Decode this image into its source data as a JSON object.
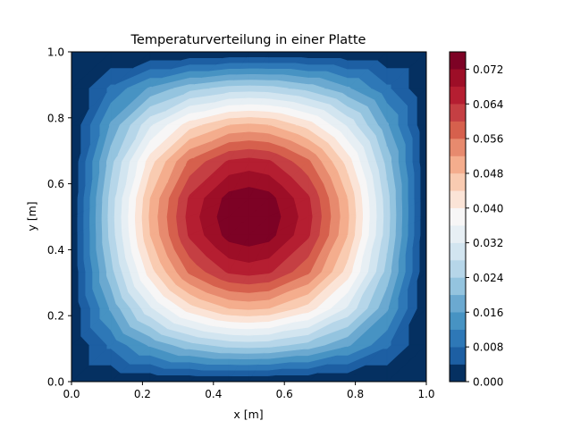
{
  "chart_data": {
    "type": "heatmap",
    "subtype": "filled-contour",
    "title": "Temperaturverteilung in einer Platte",
    "xlabel": "x [m]",
    "ylabel": "y [m]",
    "xlim": [
      0.0,
      1.0
    ],
    "ylim": [
      0.0,
      1.0
    ],
    "x_ticks": [
      "0.0",
      "0.2",
      "0.4",
      "0.6",
      "0.8",
      "1.0"
    ],
    "y_ticks": [
      "0.0",
      "0.2",
      "0.4",
      "0.6",
      "0.8",
      "1.0"
    ],
    "grid": false,
    "grid_points": [
      0.0,
      0.111,
      0.222,
      0.333,
      0.444,
      0.5,
      0.556,
      0.667,
      0.778,
      0.889,
      1.0
    ],
    "field": "approx. 0.0759 * sin(pi*x) * sin(pi*y), 0 on all edges, peak at (0.5, 0.5)",
    "peak_value": 0.0759,
    "boundary_value": 0.0,
    "colormap": "RdBu_r",
    "colorbar": {
      "min": 0.0,
      "max": 0.076,
      "level_step": 0.004,
      "tick_labels": [
        "0.000",
        "0.008",
        "0.016",
        "0.024",
        "0.032",
        "0.040",
        "0.048",
        "0.056",
        "0.064",
        "0.072"
      ],
      "colors": [
        "#053061",
        "#1d5fa3",
        "#2e78b7",
        "#4793c3",
        "#6ba9d0",
        "#94c4df",
        "#b6d6e9",
        "#d2e5f0",
        "#e7eff4",
        "#f7f6f6",
        "#fbe4d7",
        "#f9cbb1",
        "#f4ad8d",
        "#e78a6e",
        "#d6604d",
        "#c53f43",
        "#b51e31",
        "#9d0e27",
        "#7d0225"
      ]
    }
  }
}
